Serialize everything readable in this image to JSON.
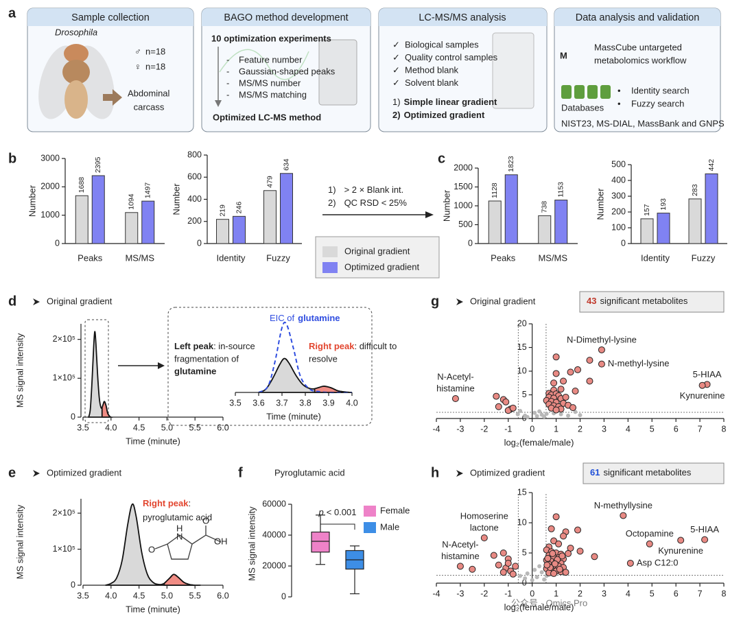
{
  "panel_labels": [
    "a",
    "b",
    "c",
    "d",
    "e",
    "f",
    "g",
    "h"
  ],
  "workflow": {
    "sample": {
      "title": "Sample collection",
      "species": "Drosophila",
      "groups": [
        {
          "symbol": "♂",
          "label": "n=18",
          "color": "#3a7bd5"
        },
        {
          "symbol": "♀",
          "label": "n=18",
          "color": "#e05a9a"
        }
      ],
      "tissue": [
        "Abdominal",
        "carcass"
      ]
    },
    "method": {
      "title": "BAGO method development",
      "heading": "10 optimization experiments",
      "bullet": "-",
      "items": [
        "Feature number",
        "Gaussian-shaped peaks",
        "MS/MS number",
        "MS/MS matching"
      ],
      "result": "Optimized LC-MS method"
    },
    "analysis": {
      "title": "LC-MS/MS analysis",
      "check": "✓",
      "items": [
        "Biological samples",
        "Quality control samples",
        "Method blank",
        "Solvent blank"
      ],
      "gradients": [
        {
          "num": "1)",
          "text": "Simple linear gradient"
        },
        {
          "num": "2)",
          "text": "Optimized gradient"
        }
      ]
    },
    "data": {
      "title": "Data analysis and validation",
      "logo": "M",
      "tool": [
        "MassCube untargeted",
        "metabolomics workflow"
      ],
      "db_label": "Databases",
      "bullet": "•",
      "searches": [
        "Identity search",
        "Fuzzy search"
      ],
      "sources": "NIST23, MS-DIAL, MassBank and GNPS"
    }
  },
  "filter": {
    "rules": [
      {
        "num": "1)",
        "text": "> 2 × Blank int."
      },
      {
        "num": "2)",
        "text": "QC RSD < 25%"
      }
    ]
  },
  "watermark": "公众号 · Omics Pro",
  "chart_data": [
    {
      "type": "bar",
      "ylabel": "Number",
      "categories": [
        "Peaks",
        "MS/MS"
      ],
      "series": [
        {
          "name": "Original gradient",
          "color": "#d9d9d9",
          "values": [
            1688,
            1094
          ]
        },
        {
          "name": "Optimized gradient",
          "color": "#8082f2",
          "values": [
            2395,
            1497
          ]
        }
      ],
      "ylim": [
        0,
        3000
      ],
      "yticks": [
        0,
        1000,
        2000,
        3000
      ]
    },
    {
      "type": "bar",
      "ylabel": "Number",
      "categories": [
        "Identity",
        "Fuzzy"
      ],
      "series": [
        {
          "values": [
            219,
            479
          ]
        },
        {
          "values": [
            246,
            634
          ]
        }
      ],
      "ylim": [
        0,
        800
      ],
      "yticks": [
        0,
        200,
        400,
        600,
        800
      ]
    },
    {
      "type": "bar",
      "ylabel": "Number",
      "categories": [
        "Peaks",
        "MS/MS"
      ],
      "series": [
        {
          "values": [
            1128,
            738
          ]
        },
        {
          "values": [
            1823,
            1153
          ]
        }
      ],
      "ylim": [
        0,
        2000
      ],
      "yticks": [
        0,
        500,
        1000,
        1500,
        2000
      ]
    },
    {
      "type": "bar",
      "ylabel": "Number",
      "categories": [
        "Identity",
        "Fuzzy"
      ],
      "series": [
        {
          "values": [
            157,
            283
          ]
        },
        {
          "values": [
            193,
            442
          ]
        }
      ],
      "ylim": [
        0,
        500
      ],
      "yticks": [
        0,
        100,
        200,
        300,
        400,
        500
      ]
    },
    {
      "type": "line",
      "title": "Original gradient",
      "xlabel": "Time (minute)",
      "ylabel": "MS signal intensity",
      "xlim": [
        3.5,
        6.0
      ],
      "xticks": [
        3.5,
        {
          "value": 4,
          "label": "4.0"
        },
        4.5,
        {
          "value": 5,
          "label": "5.0"
        },
        5.5,
        {
          "value": 6,
          "label": "6.0"
        }
      ],
      "ylim": [
        0,
        240000
      ],
      "yticks": [
        0,
        {
          "value": 100000,
          "label": "1×10⁵"
        },
        {
          "value": 200000,
          "label": "2×10⁵"
        }
      ],
      "series": [
        {
          "color": "#d9d9d9",
          "x": [
            3.6,
            3.63,
            3.66,
            3.69,
            3.71,
            3.73,
            3.76,
            3.79,
            3.82,
            3.85,
            3.88,
            3.91,
            3.94,
            3.97,
            4.0
          ],
          "values": [
            0,
            20000,
            90000,
            180000,
            220000,
            190000,
            110000,
            50000,
            25000,
            25000,
            40000,
            30000,
            10000,
            3000,
            0
          ]
        },
        {
          "color": "#f08c84",
          "x": [
            3.84,
            3.86,
            3.88,
            3.91,
            3.94,
            3.97
          ],
          "values": [
            24000,
            33000,
            40000,
            30000,
            10000,
            3000
          ]
        }
      ]
    },
    {
      "type": "line",
      "xlabel": "Time (minute)",
      "xlim": [
        3.5,
        4.0
      ],
      "xticks": [
        3.5,
        3.6,
        3.7,
        3.8,
        3.9,
        {
          "value": 4,
          "label": "4.0"
        }
      ],
      "ylim": [
        0,
        480000
      ],
      "series": [
        {
          "color": "#2f4de0",
          "dash": true,
          "x": [
            3.6,
            3.64,
            3.67,
            3.7,
            3.72,
            3.75,
            3.78,
            3.82,
            3.86,
            3.9,
            3.95,
            4.0
          ],
          "values": [
            0,
            40000,
            200000,
            420000,
            440000,
            280000,
            100000,
            20000,
            5000,
            0,
            0,
            0
          ]
        }
      ],
      "eic_label": [
        "EIC of",
        "glutamine"
      ],
      "left_peak": {
        "title": "Left peak",
        "lines": [
          ": in-source",
          "fragmentation of"
        ],
        "emphasis": "glutamine"
      },
      "right_peak": {
        "title": "Right peak",
        "lines": [
          ": difficult to",
          "resolve"
        ]
      }
    },
    {
      "type": "line",
      "title": "Optimized gradient",
      "xlabel": "Time (minute)",
      "ylabel": "MS signal intensity",
      "xlim": [
        3.5,
        6.0
      ],
      "xticks": [
        3.5,
        {
          "value": 4,
          "label": "4.0"
        },
        4.5,
        {
          "value": 5,
          "label": "5.0"
        },
        5.5,
        {
          "value": 6,
          "label": "6.0"
        }
      ],
      "ylim": [
        0,
        240000
      ],
      "yticks": [
        0,
        {
          "value": 100000,
          "label": "1×10⁵"
        },
        {
          "value": 200000,
          "label": "2×10⁵"
        }
      ],
      "series": [
        {
          "color": "#d9d9d9",
          "x": [
            3.9,
            4.0,
            4.1,
            4.2,
            4.3,
            4.38,
            4.45,
            4.55,
            4.65,
            4.75,
            4.85,
            4.95,
            5.05,
            5.12,
            5.2,
            5.3,
            5.4,
            5.5,
            5.6
          ],
          "values": [
            0,
            5000,
            20000,
            70000,
            170000,
            225000,
            190000,
            90000,
            30000,
            8000,
            2000,
            5000,
            20000,
            30000,
            22000,
            8000,
            2000,
            0,
            0
          ]
        },
        {
          "color": "#f08c84",
          "x": [
            4.95,
            5.05,
            5.12,
            5.2,
            5.3,
            5.4,
            5.5
          ],
          "values": [
            5000,
            20000,
            30000,
            22000,
            8000,
            2000,
            0
          ]
        }
      ],
      "right_peak": {
        "title": "Right peak",
        "lines": [
          ":",
          "pyroglutamic acid"
        ]
      },
      "structure_labels": [
        "H",
        "N",
        "O",
        "OH",
        "O"
      ]
    },
    {
      "type": "box",
      "title": "Pyroglutamic acid",
      "ylabel": "MS signal intensity",
      "ylim": [
        0,
        60000
      ],
      "yticks": [
        0,
        20000,
        40000,
        60000
      ],
      "p_value": [
        "p",
        "< 0.001"
      ],
      "series": [
        {
          "name": "Female",
          "color": "#ee82c8",
          "min": 21000,
          "q1": 29000,
          "median": 36000,
          "q3": 42000,
          "max": 53000
        },
        {
          "name": "Male",
          "color": "#3d8ee6",
          "min": 2000,
          "q1": 18000,
          "median": 24000,
          "q3": 30000,
          "max": 33000
        }
      ]
    },
    {
      "type": "scatter",
      "title": "Original gradient",
      "badge": {
        "count": 43,
        "text": "significant metabolites",
        "color": "#c0392b"
      },
      "xlabel": "log₂(female/male)",
      "xlim": [
        -4,
        8
      ],
      "xticks": [
        -4,
        -3,
        -2,
        -1,
        0,
        1,
        2,
        3,
        4,
        5,
        6,
        7,
        8
      ],
      "ylim": [
        0,
        20
      ],
      "yticks": [
        0,
        5,
        10,
        15,
        20
      ],
      "thresholds": {
        "x": [
          -0.58,
          0.58
        ],
        "y": 1.3
      },
      "series": [
        {
          "color": "#b8b8b8",
          "x": [
            0.2,
            0.4,
            -0.3,
            0.6,
            0.9,
            1.2,
            1.5,
            -0.6,
            0.1,
            1.8,
            -0.2,
            0.5,
            0.3,
            2.0,
            -0.5
          ],
          "values": [
            0.5,
            0.8,
            0.6,
            1.0,
            1.1,
            0.9,
            0.6,
            0.9,
            1.2,
            1.4,
            0.3,
            0.4,
            1.5,
            0.7,
            1.6
          ]
        },
        {
          "color": "#e88a84",
          "x": [
            2.9,
            2.9,
            7.3,
            7.1,
            -3.2,
            -1.5,
            -1.2,
            -1.1,
            -1.4,
            -0.9,
            -1.0,
            -0.8,
            1.0,
            2.4,
            1.9,
            1.6,
            1.0,
            1.3,
            2.4,
            0.9,
            1.8,
            1.2,
            0.9,
            0.7,
            0.8,
            1.0,
            1.1,
            0.7,
            0.9,
            1.2,
            1.4,
            0.6,
            0.8,
            1.0,
            1.3,
            0.7,
            0.9,
            1.1,
            1.5,
            0.8,
            1.2,
            1.0,
            1.7
          ],
          "values": [
            14.5,
            11.5,
            7.2,
            7.0,
            4.2,
            4.7,
            4.0,
            3.5,
            2.5,
            2.0,
            1.7,
            2.2,
            13.0,
            12.3,
            10.3,
            9.8,
            9.5,
            7.9,
            7.9,
            7.5,
            5.8,
            6.2,
            6.0,
            5.3,
            5.0,
            5.2,
            4.8,
            4.5,
            4.3,
            4.2,
            4.5,
            3.8,
            3.6,
            3.4,
            3.2,
            3.0,
            2.7,
            2.5,
            2.8,
            2.2,
            2.0,
            1.8,
            2.3
          ]
        }
      ],
      "labels": [
        {
          "text": "N-Dimethyl-lysine",
          "x": 2.9,
          "y": 14.5,
          "position": "above"
        },
        {
          "text": "N-methyl-lysine",
          "x": 2.9,
          "y": 11.5,
          "position": "right"
        },
        {
          "text": "5-HIAA",
          "x": 7.3,
          "y": 7.2,
          "position": "above"
        },
        {
          "text": "Kynurenine",
          "x": 7.1,
          "y": 7.0,
          "position": "below"
        },
        {
          "text": [
            "N-Acetyl-",
            "histamine"
          ],
          "x": -3.2,
          "y": 4.2,
          "position": "above"
        }
      ]
    },
    {
      "type": "scatter",
      "title": "Optimized gradient",
      "badge": {
        "count": 61,
        "text": "significant metabolites",
        "color": "#1f4fd8"
      },
      "xlabel": "log₂(female/male)",
      "xlim": [
        -4,
        8
      ],
      "xticks": [
        -4,
        -3,
        -2,
        -1,
        0,
        1,
        2,
        3,
        4,
        5,
        6,
        7,
        8
      ],
      "ylim": [
        0,
        15
      ],
      "yticks": [
        0,
        5,
        10,
        15
      ],
      "thresholds": {
        "x": [
          -0.58,
          0.58
        ],
        "y": 1.3
      },
      "series": [
        {
          "color": "#b8b8b8",
          "x": [
            0.2,
            -0.3,
            0.4,
            0.1,
            -0.5,
            0.5,
            0.3,
            -0.2,
            0.6,
            0.0
          ],
          "values": [
            1.0,
            0.8,
            1.8,
            2.2,
            1.2,
            0.6,
            2.8,
            1.6,
            1.2,
            0.5
          ]
        },
        {
          "color": "#e88a84",
          "x": [
            3.8,
            -2.0,
            -3.0,
            -2.5,
            4.9,
            7.2,
            6.2,
            4.1,
            -1.6,
            -1.2,
            -1.0,
            -1.4,
            -1.1,
            -0.9,
            -1.2,
            -0.8,
            -1.0,
            -0.7,
            1.0,
            1.4,
            1.3,
            1.9,
            0.9,
            1.1,
            1.6,
            2.0,
            2.6,
            1.5,
            0.8,
            0.7,
            0.6,
            0.8,
            1.0,
            1.2,
            0.7,
            0.9,
            1.1,
            1.3,
            0.6,
            0.8,
            1.0,
            1.2,
            0.7,
            0.9,
            1.1,
            1.3,
            0.6,
            0.8,
            1.0,
            1.2,
            0.7,
            0.9,
            1.4,
            0.65,
            0.75,
            1.05,
            1.15,
            0.85,
            0.95,
            1.25,
            0.62
          ],
          "values": [
            11.2,
            7.5,
            2.8,
            2.3,
            6.5,
            7.2,
            7.1,
            3.3,
            4.6,
            5.0,
            4.0,
            3.0,
            2.5,
            2.0,
            1.8,
            1.5,
            3.3,
            2.8,
            11.0,
            8.5,
            7.8,
            8.8,
            7.0,
            6.5,
            5.8,
            5.3,
            4.4,
            4.9,
            9.0,
            6.0,
            5.5,
            5.2,
            5.0,
            4.8,
            4.6,
            4.4,
            4.2,
            4.0,
            3.8,
            3.6,
            3.5,
            3.3,
            3.1,
            2.9,
            2.8,
            2.6,
            2.4,
            2.2,
            2.0,
            1.9,
            1.7,
            1.6,
            1.8,
            4.1,
            2.6,
            3.9,
            2.3,
            4.9,
            3.2,
            4.5,
            3.0
          ]
        }
      ],
      "labels": [
        {
          "text": "N-methyllysine",
          "x": 3.8,
          "y": 11.2,
          "position": "above"
        },
        {
          "text": [
            "Homoserine",
            "lactone"
          ],
          "x": -2.0,
          "y": 7.5,
          "position": "above"
        },
        {
          "text": [
            "N-Acetyl-",
            "histamine"
          ],
          "x": -3.0,
          "y": 2.8,
          "position": "above"
        },
        {
          "text": "Octopamine",
          "x": 4.9,
          "y": 6.5,
          "position": "above"
        },
        {
          "text": "5-HIAA",
          "x": 7.2,
          "y": 7.2,
          "position": "above"
        },
        {
          "text": "Kynurenine",
          "x": 6.2,
          "y": 7.1,
          "position": "below"
        },
        {
          "text": "Asp C12:0",
          "x": 4.1,
          "y": 3.3,
          "position": "right"
        }
      ]
    }
  ]
}
